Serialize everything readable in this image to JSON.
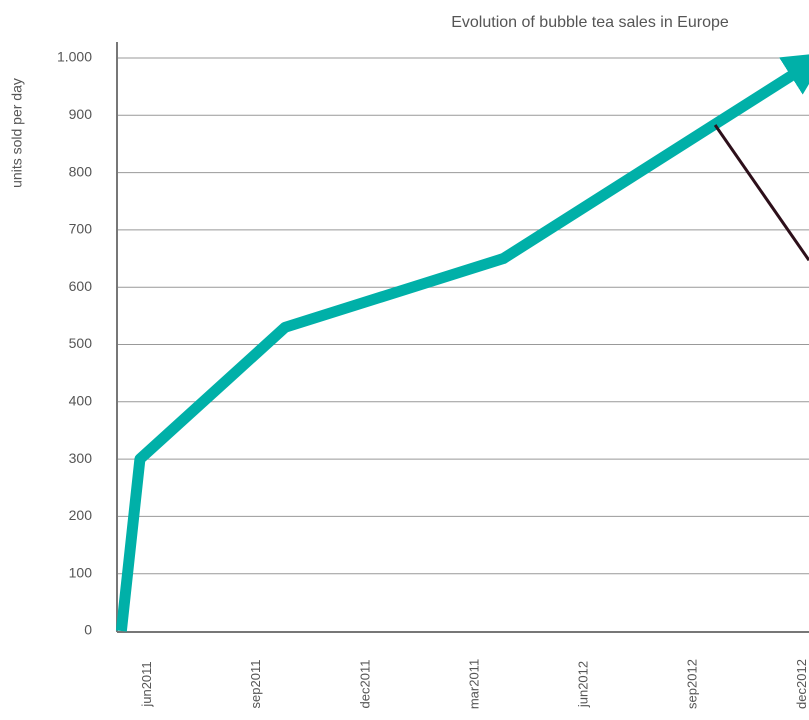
{
  "chart_data": {
    "type": "line",
    "title": "Evolution of bubble tea sales in Europe",
    "y_label": "units  sold per day",
    "xlim": [
      -0.28,
      6.06
    ],
    "xticks": [
      {
        "value": 0,
        "label": "jun2011"
      },
      {
        "value": 1,
        "label": "sep2011"
      },
      {
        "value": 2,
        "label": "dec2011"
      },
      {
        "value": 3,
        "label": "mar2011"
      },
      {
        "value": 4,
        "label": "jun2012"
      },
      {
        "value": 5,
        "label": "sep2012"
      },
      {
        "value": 6,
        "label": "dec2012"
      }
    ],
    "ylim": [
      0,
      1000
    ],
    "yticks": [
      0,
      100,
      200,
      300,
      400,
      500,
      600,
      700,
      800,
      900,
      {
        "value": 1000,
        "label": "1.000"
      }
    ],
    "grid": true,
    "series": [
      {
        "color": "#00b0a8",
        "x": [
          -0.24,
          -0.07,
          1.26,
          3.26,
          6.03
        ],
        "values": [
          0,
          300,
          530,
          650,
          985
        ],
        "arrow": true
      },
      {
        "color": "#2d0f1a",
        "x": [
          5.2,
          6.06
        ],
        "values": [
          883,
          647
        ]
      }
    ]
  }
}
